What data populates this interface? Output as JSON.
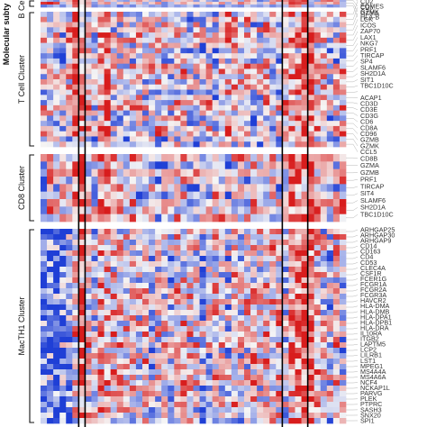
{
  "axis_title": "Molecular subty",
  "chart_data": {
    "type": "heatmap",
    "title": "",
    "xlabel": "",
    "ylabel": "Molecular subty",
    "n_columns": 48,
    "column_dividers_after": [
      6,
      7,
      38,
      42
    ],
    "color_scale": {
      "low": "#1f3fd6",
      "mid": "#f5f5f5",
      "high": "#d81d1d"
    },
    "groups": [
      {
        "name": "B Cell C",
        "rows": [
          "",
          "EOMES",
          "GZMK",
          "HLA-B"
        ],
        "values": [
          [
            0.6,
            0.8,
            0.5,
            0.7,
            0.9,
            1.0,
            0.2,
            0.4,
            0.3,
            0.5,
            0.6,
            0.7,
            0.4,
            0.5,
            0.3,
            0.6,
            0.5,
            0.4,
            0.6,
            0.7,
            0.5,
            0.4,
            0.6,
            0.5,
            0.3,
            0.5,
            0.6,
            0.4,
            0.7,
            0.5,
            0.6,
            0.4,
            0.5,
            0.6,
            0.3,
            0.5,
            0.4,
            0.6,
            0.5,
            0.9,
            0.8,
            0.6,
            0.7,
            0.4,
            0.5,
            0.6,
            0.8,
            0.7
          ],
          [
            -0.2,
            -0.4,
            -0.6,
            0.2,
            0.3,
            0.9,
            0.1,
            0.3,
            -0.2,
            0.4,
            -0.3,
            0.2,
            -0.4,
            -0.5,
            0.3,
            0.5,
            0.2,
            -0.3,
            -0.6,
            0.4,
            0.3,
            -0.2,
            0.2,
            0.3,
            -0.5,
            0.1,
            -0.4,
            -0.6,
            -0.2,
            0.2,
            0.3,
            -0.4,
            0.5,
            0.2,
            -0.7,
            -0.5,
            0.4,
            0.6,
            0.5,
            0.8,
            0.7,
            0.9,
            -0.3,
            -0.5,
            0.6,
            0.7,
            0.4,
            -0.4
          ],
          [
            0.9,
            1.0,
            0.8,
            -0.3,
            0.2,
            0.8,
            0.1,
            0.4,
            -0.5,
            0.3,
            0.5,
            -0.3,
            0.2,
            0.4,
            -0.2,
            0.3,
            -0.4,
            0.2,
            0.5,
            -0.6,
            -0.3,
            0.2,
            0.4,
            0.1,
            0.2,
            -0.2,
            0.3,
            0.1,
            0.5,
            -0.4,
            0.2,
            0.6,
            0.3,
            0.1,
            -0.3,
            0.2,
            0.5,
            -0.2,
            0.3,
            0.9,
            0.8,
            0.7,
            -0.4,
            0.3,
            0.4,
            0.2,
            0.5,
            -0.3
          ],
          [
            -0.7,
            -0.5,
            -0.3,
            -0.6,
            -0.2,
            0.7,
            0.0,
            0.3,
            -0.6,
            -0.4,
            -0.5,
            -0.3,
            -0.7,
            -0.4,
            -0.6,
            -0.2,
            -0.3,
            -0.5,
            -0.4,
            -0.6,
            -0.3,
            -0.5,
            -0.4,
            -0.2,
            -0.6,
            -0.3,
            -0.5,
            -0.4,
            -0.7,
            -0.3,
            -0.5,
            -0.6,
            -0.2,
            -0.4,
            -0.5,
            -0.3,
            -0.6,
            -0.4,
            -0.3,
            0.6,
            0.5,
            -0.4,
            -0.5,
            -0.3,
            -0.4,
            -0.6,
            -0.5,
            -0.3
          ]
        ]
      },
      {
        "name": "T Cell Cluster",
        "rows": [
          "CD2",
          "CD5",
          "GZMA",
          "LCK",
          "ICOS",
          "ZAP70",
          "LAX1",
          "NKG7",
          "PRF1",
          "TIRCAP",
          "SP4",
          "SLAMF6",
          "SH2D1A",
          "SIT1",
          "TBC1D10C",
          "",
          "ACAP1",
          "CD3D",
          "CD3E",
          "CD3G",
          "CD6",
          "CD8A",
          "CD96",
          "GZMB",
          "GZMK",
          "CCL5"
        ],
        "seed": 11
      },
      {
        "name": "CD8 Cluster",
        "rows": [
          "CD8B",
          "GZMA",
          "GZMB",
          "PRF1",
          "TIRCAP",
          "SIT4",
          "SLAMF6",
          "SH2D1A",
          "TBC1D10C"
        ],
        "seed": 29
      },
      {
        "name": "MacTH1 Cluster",
        "rows": [
          "ARHGAP25",
          "ARHGAP30",
          "ARHGAP9",
          "CD14",
          "CD163",
          "CD4",
          "CD53",
          "CLEC4A",
          "CSF1R",
          "FCER1G",
          "FCGR1A",
          "FCGR2A",
          "FCGR3A",
          "HAVCR2",
          "HLA-DMA",
          "HLA-DMB",
          "HLA-DPA1",
          "HLA-DPB1",
          "HLA-DRA",
          "IL10RA",
          "ITGB2",
          "LAPTM5",
          "LCP2",
          "LILRB1",
          "LST1",
          "MPEG1",
          "MS4A4A",
          "MS4A6A",
          "NCF4",
          "NCKAP1L",
          "PARVG",
          "PLEK",
          "PTPRC",
          "SASH3",
          "SNX20",
          "SPI1"
        ],
        "seed": 47
      }
    ]
  }
}
